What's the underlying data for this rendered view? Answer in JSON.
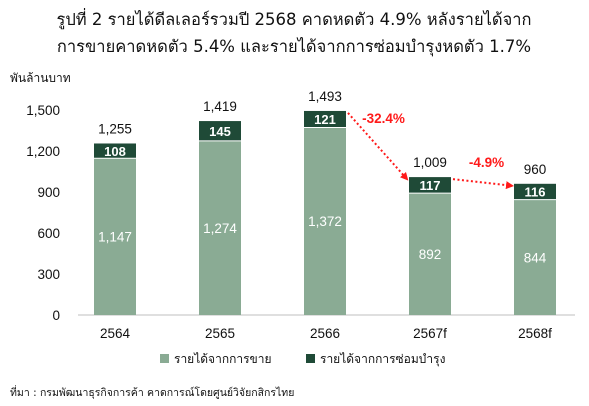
{
  "chart_data": {
    "type": "bar",
    "stacked": true,
    "title": [
      "รูปที่ 2 รายได้ดีลเลอร์รวมปี 2568 คาดหดตัว 4.9% หลังรายได้จาก",
      "การขายคาดหดตัว 5.4% และรายได้จากการซ่อมบำรุงหดตัว 1.7%"
    ],
    "ylabel": "พันล้านบาท",
    "categories": [
      "2564",
      "2565",
      "2566",
      "2567f",
      "2568f"
    ],
    "ylim": [
      0,
      1500
    ],
    "yticks": [
      0,
      300,
      600,
      900,
      1200,
      1500
    ],
    "ytick_labels": [
      "0",
      "300",
      "600",
      "900",
      "1,200",
      "1,500"
    ],
    "series": [
      {
        "name": "รายได้จากการขาย",
        "values": [
          1147,
          1274,
          1372,
          892,
          844
        ],
        "labels": [
          "1,147",
          "1,274",
          "1,372",
          "892",
          "844"
        ],
        "color": "#8aab94"
      },
      {
        "name": "รายได้จากการซ่อมบำรุง",
        "values": [
          108,
          145,
          121,
          117,
          116
        ],
        "labels": [
          "108",
          "145",
          "121",
          "117",
          "116"
        ],
        "color": "#1f4a37"
      }
    ],
    "totals": [
      "1,255",
      "1,419",
      "1,493",
      "1,009",
      "960"
    ],
    "annotations": [
      {
        "text": "-32.4%",
        "from": 2,
        "to": 3,
        "color": "#ff1a1a"
      },
      {
        "text": "-4.9%",
        "from": 3,
        "to": 4,
        "color": "#ff1a1a"
      }
    ],
    "legend_position": "bottom",
    "grid": false,
    "source": "ที่มา : กรมพัฒนาธุรกิจการค้า คาดการณ์โดยศูนย์วิจัยกสิกรไทย"
  }
}
